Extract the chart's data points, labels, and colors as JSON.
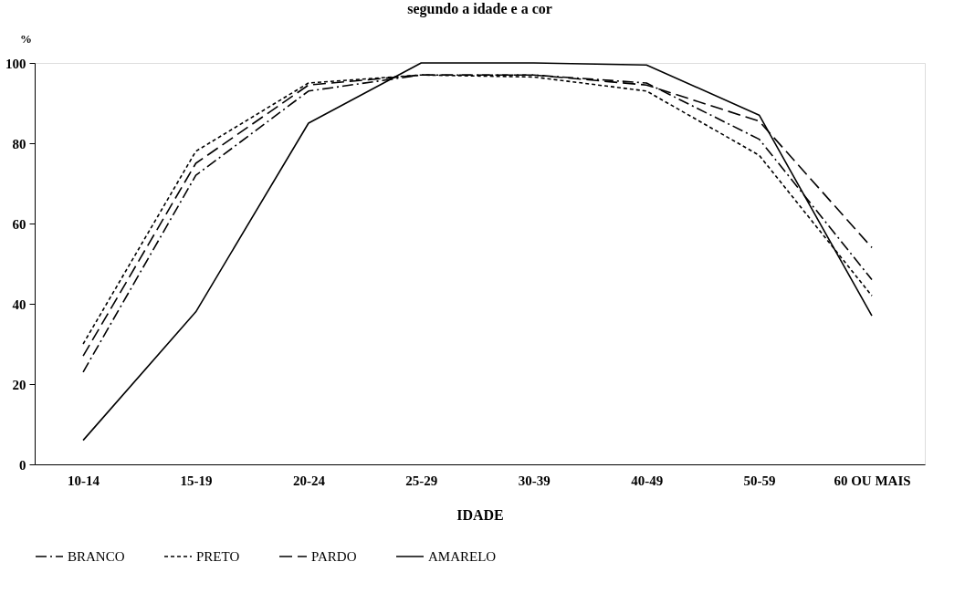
{
  "chart_data": {
    "type": "line",
    "title": "segundo a idade e a cor",
    "xlabel": "IDADE",
    "ylabel": "%",
    "categories": [
      "10-14",
      "15-19",
      "20-24",
      "25-29",
      "30-39",
      "40-49",
      "50-59",
      "60 OU MAIS"
    ],
    "series": [
      {
        "name": "BRANCO",
        "color": "#000000",
        "line_style": "dashdot",
        "values": [
          23,
          72,
          93,
          97,
          97,
          95,
          81,
          46
        ]
      },
      {
        "name": "PRETO",
        "color": "#000000",
        "line_style": "dotted",
        "values": [
          30,
          78,
          95,
          97,
          96.5,
          93,
          77,
          42
        ]
      },
      {
        "name": "PARDO",
        "color": "#000000",
        "line_style": "dashed",
        "values": [
          27,
          75,
          94.5,
          97,
          97,
          94.5,
          85.5,
          54
        ]
      },
      {
        "name": "AMARELO",
        "color": "#000000",
        "line_style": "solid",
        "values": [
          6,
          38,
          85,
          100,
          100,
          99.5,
          87,
          37
        ]
      }
    ],
    "ylim": [
      0,
      100
    ],
    "yticks": [
      0,
      20,
      40,
      60,
      80,
      100
    ],
    "grid": false,
    "legend": "bottom",
    "marker": "none"
  }
}
